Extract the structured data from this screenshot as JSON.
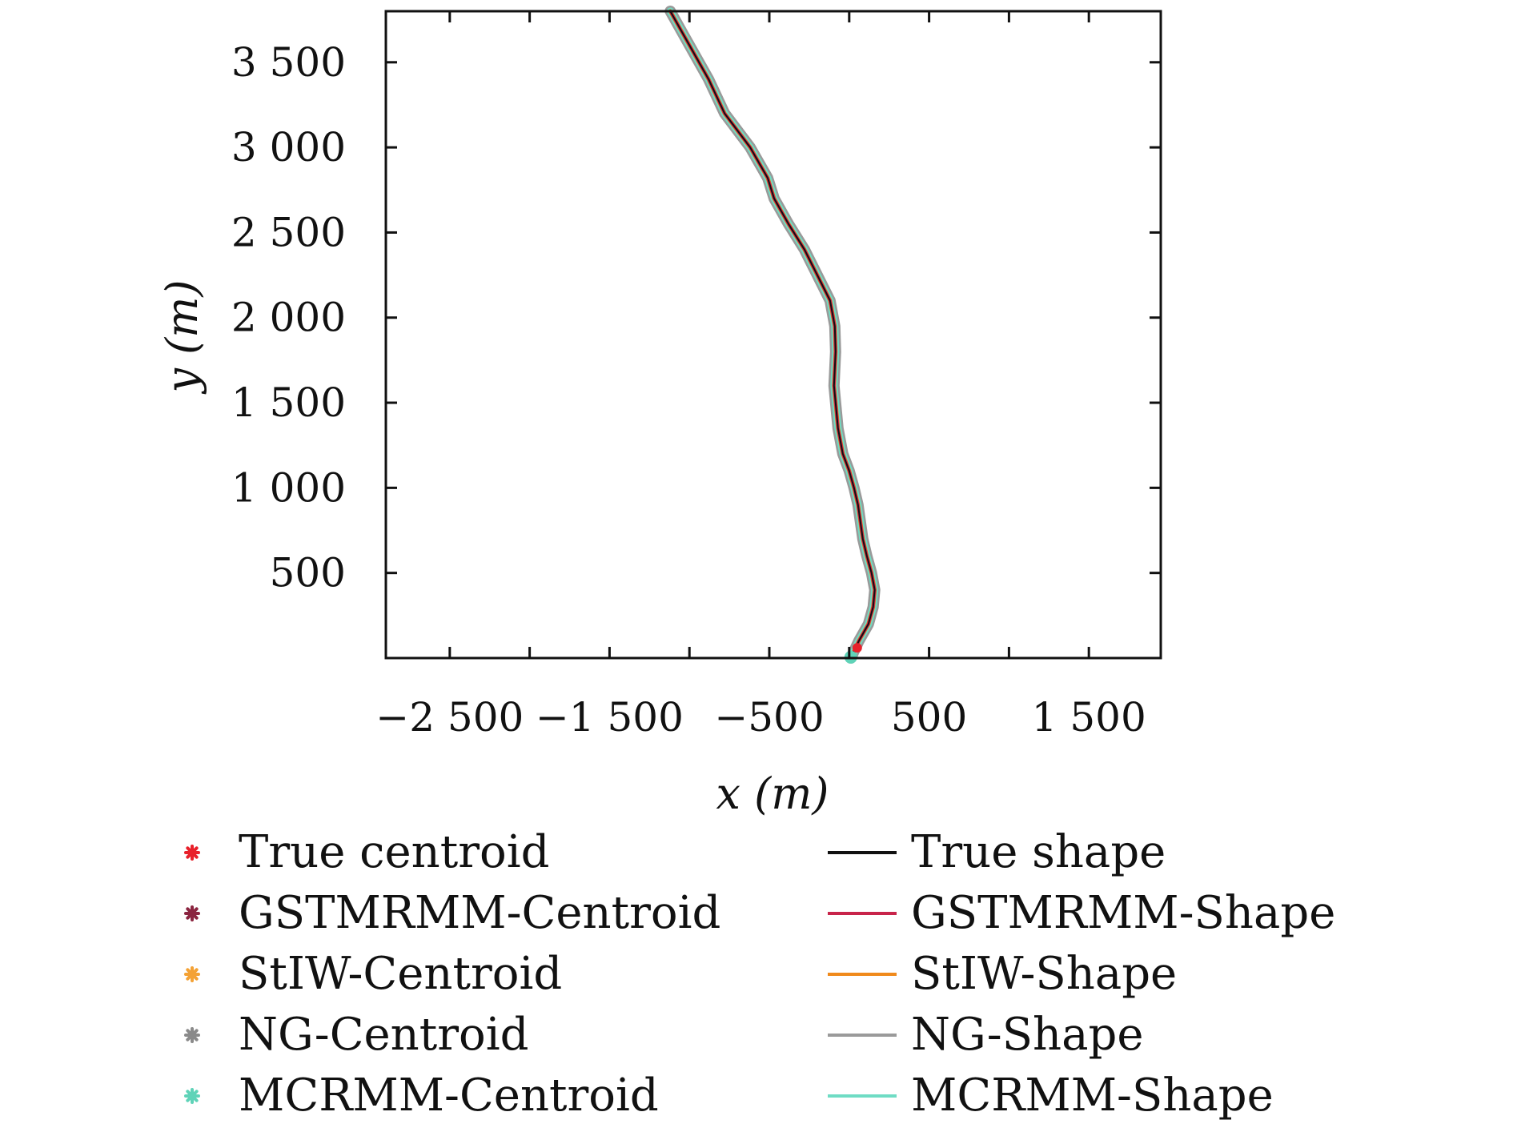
{
  "chart_data": {
    "type": "line",
    "xlabel": "x (m)",
    "ylabel": "y (m)",
    "xlim": [
      -2900,
      1950
    ],
    "ylim": [
      0,
      3800
    ],
    "xticks": [
      -2500,
      -2000,
      -1500,
      -1000,
      -500,
      0,
      500,
      1000,
      1500
    ],
    "xtick_labels": [
      {
        "value": -2500,
        "label": "−2 500"
      },
      {
        "value": -1500,
        "label": "−1 500"
      },
      {
        "value": -500,
        "label": "−500"
      },
      {
        "value": 500,
        "label": "500"
      },
      {
        "value": 1500,
        "label": "1 500"
      }
    ],
    "yticks": [
      500,
      1000,
      1500,
      2000,
      2500,
      3000,
      3500
    ],
    "ytick_labels": [
      {
        "value": 500,
        "label": "500"
      },
      {
        "value": 1000,
        "label": "1 000"
      },
      {
        "value": 1500,
        "label": "1 500"
      },
      {
        "value": 2000,
        "label": "2 000"
      },
      {
        "value": 2500,
        "label": "2 500"
      },
      {
        "value": 3000,
        "label": "3 000"
      },
      {
        "value": 3500,
        "label": "3 500"
      }
    ],
    "grid": false,
    "legend_position": "bottom",
    "trajectory": {
      "x": [
        10,
        60,
        120,
        150,
        160,
        140,
        110,
        85,
        70,
        55,
        30,
        0,
        -40,
        -70,
        -95,
        -90,
        -85,
        -90,
        -120,
        -200,
        -280,
        -380,
        -470,
        -510,
        -620,
        -780,
        -880,
        -1000,
        -1120
      ],
      "y": [
        0,
        100,
        200,
        300,
        400,
        500,
        600,
        700,
        800,
        900,
        1000,
        1100,
        1200,
        1350,
        1600,
        1700,
        1800,
        1950,
        2100,
        2250,
        2400,
        2550,
        2700,
        2820,
        3000,
        3200,
        3400,
        3600,
        3800
      ]
    },
    "series": [
      {
        "name": "True centroid",
        "kind": "centroid",
        "color": "#e8202a"
      },
      {
        "name": "GSTMRMM-Centroid",
        "kind": "centroid",
        "color": "#8b2540"
      },
      {
        "name": "StIW-Centroid",
        "kind": "centroid",
        "color": "#f4a235"
      },
      {
        "name": "NG-Centroid",
        "kind": "centroid",
        "color": "#8a8a8a"
      },
      {
        "name": "MCRMM-Centroid",
        "kind": "centroid",
        "color": "#5fd3b8"
      },
      {
        "name": "True shape",
        "kind": "shape",
        "color": "#111111"
      },
      {
        "name": "GSTMRMM-Shape",
        "kind": "shape",
        "color": "#c8244a"
      },
      {
        "name": "StIW-Shape",
        "kind": "shape",
        "color": "#f08a1c"
      },
      {
        "name": "NG-Shape",
        "kind": "shape",
        "color": "#9a9a9a"
      },
      {
        "name": "MCRMM-Shape",
        "kind": "shape",
        "color": "#6fdcc4"
      }
    ]
  }
}
